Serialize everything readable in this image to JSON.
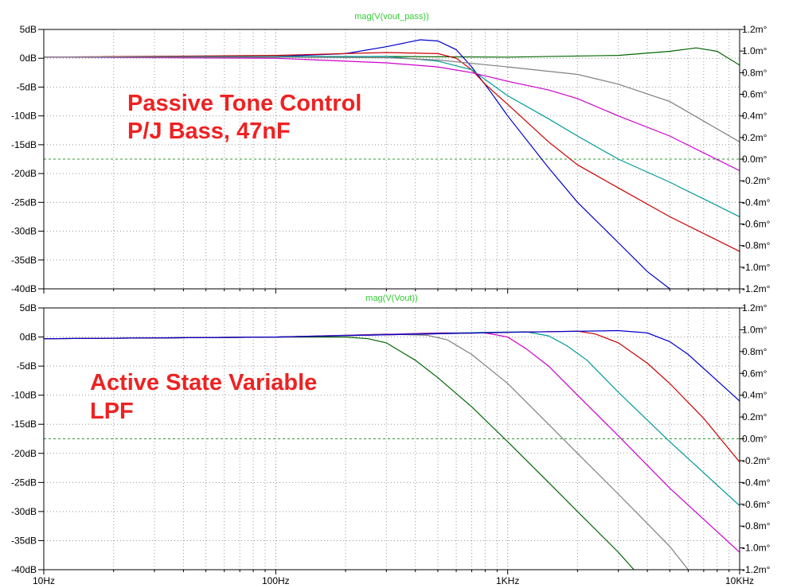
{
  "chart_data": [
    {
      "type": "line",
      "trace_title": "mag(V(vout_pass))",
      "annotation": [
        "Passive Tone Control",
        "P/J Bass, 47nF"
      ],
      "x_scale": "log",
      "xlim": [
        10,
        10000
      ],
      "ylim": [
        -40,
        5
      ],
      "y_ticks": [
        "5dB",
        "0dB",
        "-5dB",
        "-10dB",
        "-15dB",
        "-20dB",
        "-25dB",
        "-30dB",
        "-35dB",
        "-40dB"
      ],
      "y2lim": [
        -1.2,
        1.2
      ],
      "y2_ticks": [
        "1.2m°",
        "1.0m°",
        "0.8m°",
        "0.6m°",
        "0.4m°",
        "0.2m°",
        "0.0m°",
        "-0.2m°",
        "-0.4m°",
        "-0.6m°",
        "-0.8m°",
        "-1.0m°",
        "-1.2m°"
      ],
      "reference_line_y2": 0.0,
      "grid": true,
      "series": [
        {
          "color": "#006600",
          "points": [
            [
              10,
              0.2
            ],
            [
              100,
              0.2
            ],
            [
              300,
              0.3
            ],
            [
              1000,
              0.2
            ],
            [
              3000,
              0.5
            ],
            [
              5000,
              1.2
            ],
            [
              6500,
              1.8
            ],
            [
              8000,
              1.2
            ],
            [
              10000,
              -1.2
            ]
          ]
        },
        {
          "color": "#0000cc",
          "points": [
            [
              10,
              0.2
            ],
            [
              100,
              0.3
            ],
            [
              200,
              0.8
            ],
            [
              300,
              2.0
            ],
            [
              420,
              3.2
            ],
            [
              500,
              3.0
            ],
            [
              600,
              1.5
            ],
            [
              700,
              -1.5
            ],
            [
              850,
              -6.0
            ],
            [
              1000,
              -10.0
            ],
            [
              1500,
              -19.0
            ],
            [
              2000,
              -25.0
            ],
            [
              3000,
              -32.0
            ],
            [
              4000,
              -37.0
            ],
            [
              5000,
              -40.0
            ]
          ]
        },
        {
          "color": "#cc0000",
          "points": [
            [
              10,
              0.2
            ],
            [
              100,
              0.5
            ],
            [
              300,
              1.0
            ],
            [
              500,
              0.8
            ],
            [
              600,
              0.0
            ],
            [
              700,
              -2.0
            ],
            [
              800,
              -4.5
            ],
            [
              1000,
              -8.0
            ],
            [
              1500,
              -14.5
            ],
            [
              2000,
              -18.5
            ],
            [
              3000,
              -22.5
            ],
            [
              5000,
              -27.5
            ],
            [
              10000,
              -33.5
            ]
          ]
        },
        {
          "color": "#009999",
          "points": [
            [
              10,
              0.2
            ],
            [
              100,
              0.3
            ],
            [
              300,
              0.3
            ],
            [
              500,
              -0.5
            ],
            [
              700,
              -2.0
            ],
            [
              1000,
              -6.5
            ],
            [
              1500,
              -10.5
            ],
            [
              2000,
              -13.5
            ],
            [
              3000,
              -17.5
            ],
            [
              5000,
              -21.5
            ],
            [
              10000,
              -27.5
            ]
          ]
        },
        {
          "color": "#cc00cc",
          "points": [
            [
              10,
              0.2
            ],
            [
              100,
              0.0
            ],
            [
              300,
              -0.8
            ],
            [
              500,
              -1.5
            ],
            [
              700,
              -2.5
            ],
            [
              1000,
              -4.0
            ],
            [
              1500,
              -5.5
            ],
            [
              2000,
              -7.0
            ],
            [
              3000,
              -10.0
            ],
            [
              5000,
              -13.5
            ],
            [
              10000,
              -19.5
            ]
          ]
        },
        {
          "color": "#808080",
          "points": [
            [
              10,
              0.2
            ],
            [
              100,
              0.2
            ],
            [
              300,
              0.1
            ],
            [
              500,
              -0.3
            ],
            [
              1000,
              -1.5
            ],
            [
              2000,
              -2.8
            ],
            [
              3000,
              -4.5
            ],
            [
              5000,
              -7.5
            ],
            [
              10000,
              -14.5
            ]
          ]
        }
      ]
    },
    {
      "type": "line",
      "trace_title": "mag(V(Vout))",
      "annotation": [
        "Active State Variable",
        "LPF"
      ],
      "x_scale": "log",
      "xlim": [
        10,
        10000
      ],
      "ylim": [
        -40,
        5
      ],
      "y_ticks": [
        "5dB",
        "0dB",
        "-5dB",
        "-10dB",
        "-15dB",
        "-20dB",
        "-25dB",
        "-30dB",
        "-35dB",
        "-40dB"
      ],
      "y2lim": [
        -1.2,
        1.2
      ],
      "y2_ticks": [
        "1.2m°",
        "1.0m°",
        "0.8m°",
        "0.6m°",
        "0.4m°",
        "0.2m°",
        "0.0m°",
        "-0.2m°",
        "-0.4m°",
        "-0.6m°",
        "-0.8m°",
        "-1.0m°",
        "-1.2m°"
      ],
      "x_ticks": [
        "10Hz",
        "100Hz",
        "1KHz",
        "10KHz"
      ],
      "reference_line_y2": 0.0,
      "grid": true,
      "series": [
        {
          "color": "#006600",
          "points": [
            [
              10,
              -0.3
            ],
            [
              100,
              0.0
            ],
            [
              200,
              0.0
            ],
            [
              250,
              -0.3
            ],
            [
              300,
              -1.0
            ],
            [
              400,
              -4.0
            ],
            [
              500,
              -7.0
            ],
            [
              700,
              -12.0
            ],
            [
              1000,
              -18.0
            ],
            [
              1500,
              -25.0
            ],
            [
              2000,
              -30.0
            ],
            [
              3000,
              -37.0
            ],
            [
              3500,
              -40.0
            ]
          ]
        },
        {
          "color": "#808080",
          "points": [
            [
              10,
              -0.3
            ],
            [
              100,
              0.0
            ],
            [
              300,
              0.5
            ],
            [
              450,
              0.3
            ],
            [
              550,
              -0.5
            ],
            [
              700,
              -3.0
            ],
            [
              1000,
              -8.0
            ],
            [
              1500,
              -15.0
            ],
            [
              2000,
              -20.0
            ],
            [
              3000,
              -27.0
            ],
            [
              5000,
              -36.0
            ],
            [
              6000,
              -40.0
            ]
          ]
        },
        {
          "color": "#cc00cc",
          "points": [
            [
              10,
              -0.3
            ],
            [
              100,
              0.0
            ],
            [
              500,
              0.7
            ],
            [
              800,
              0.7
            ],
            [
              1000,
              0.0
            ],
            [
              1200,
              -2.0
            ],
            [
              1500,
              -5.0
            ],
            [
              2000,
              -10.0
            ],
            [
              3000,
              -17.0
            ],
            [
              5000,
              -26.0
            ],
            [
              10000,
              -37.0
            ]
          ]
        },
        {
          "color": "#009999",
          "points": [
            [
              10,
              -0.3
            ],
            [
              100,
              0.0
            ],
            [
              800,
              0.8
            ],
            [
              1200,
              0.9
            ],
            [
              1500,
              0.2
            ],
            [
              1800,
              -1.5
            ],
            [
              2200,
              -4.0
            ],
            [
              3000,
              -9.5
            ],
            [
              5000,
              -18.0
            ],
            [
              10000,
              -29.0
            ]
          ]
        },
        {
          "color": "#cc0000",
          "points": [
            [
              10,
              -0.3
            ],
            [
              100,
              0.0
            ],
            [
              1000,
              0.8
            ],
            [
              2000,
              1.0
            ],
            [
              2400,
              0.5
            ],
            [
              3000,
              -1.0
            ],
            [
              4000,
              -4.5
            ],
            [
              5000,
              -8.0
            ],
            [
              7000,
              -14.0
            ],
            [
              10000,
              -21.5
            ]
          ]
        },
        {
          "color": "#0000cc",
          "points": [
            [
              10,
              -0.3
            ],
            [
              100,
              0.0
            ],
            [
              1000,
              0.8
            ],
            [
              3000,
              1.1
            ],
            [
              4000,
              0.7
            ],
            [
              5000,
              -0.8
            ],
            [
              6000,
              -3.0
            ],
            [
              8000,
              -7.5
            ],
            [
              10000,
              -11.0
            ]
          ]
        }
      ]
    }
  ]
}
